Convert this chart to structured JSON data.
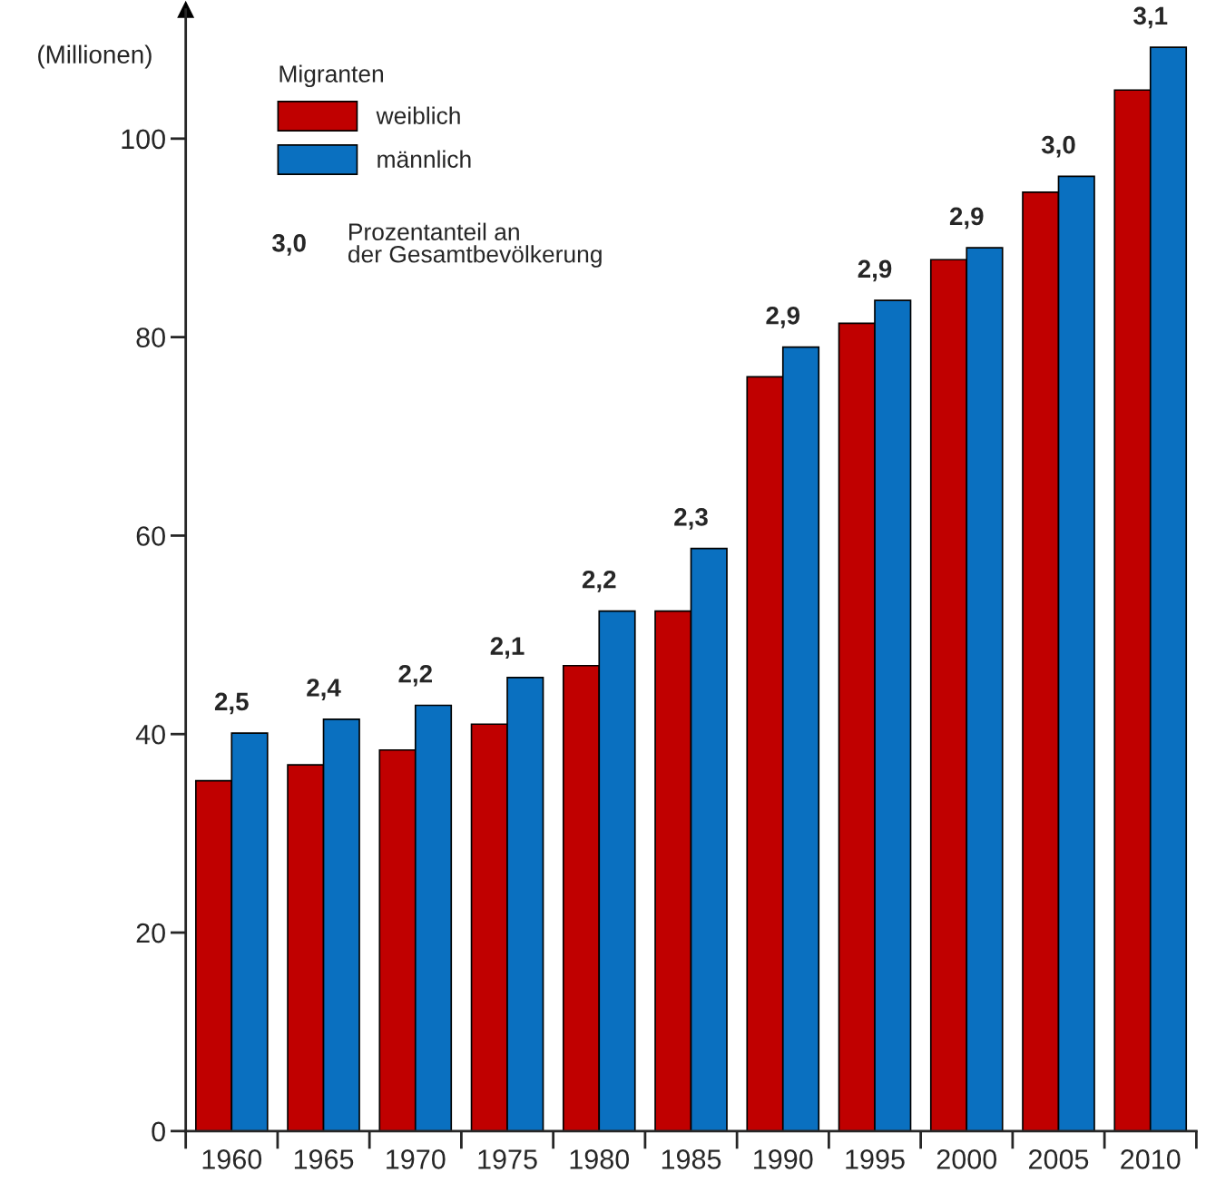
{
  "chart_data": {
    "type": "bar",
    "ylabel": "(Millionen)",
    "legend_title": "Migranten",
    "categories": [
      "1960",
      "1965",
      "1970",
      "1975",
      "1980",
      "1985",
      "1990",
      "1995",
      "2000",
      "2005",
      "2010"
    ],
    "series": [
      {
        "name": "weiblich",
        "color": "#c00000",
        "values": [
          35.3,
          36.9,
          38.4,
          41.0,
          46.9,
          52.4,
          76.0,
          81.4,
          87.8,
          94.6,
          104.9
        ]
      },
      {
        "name": "männlich",
        "color": "#0a70c0",
        "values": [
          40.1,
          41.5,
          42.9,
          45.7,
          52.4,
          58.7,
          79.0,
          83.7,
          89.0,
          96.2,
          109.2
        ]
      }
    ],
    "ylim": [
      0,
      113
    ],
    "yticks": [
      0,
      20,
      40,
      60,
      80,
      100
    ],
    "grid": false,
    "legend": "top left",
    "annotations": [
      {
        "text": "2,5",
        "x": "1960",
        "y": 40.1
      },
      {
        "text": "2,4",
        "x": "1965",
        "y": 41.5
      },
      {
        "text": "2,2",
        "x": "1970",
        "y": 42.9
      },
      {
        "text": "2,1",
        "x": "1975",
        "y": 45.7
      },
      {
        "text": "2,2",
        "x": "1980",
        "y": 52.4
      },
      {
        "text": "2,3",
        "x": "1985",
        "y": 58.7
      },
      {
        "text": "2,9",
        "x": "1990",
        "y": 79.0
      },
      {
        "text": "2,9",
        "x": "1995",
        "y": 83.7
      },
      {
        "text": "2,9",
        "x": "2000",
        "y": 89.0
      },
      {
        "text": "3,0",
        "x": "2005",
        "y": 96.2
      },
      {
        "text": "3,1",
        "x": "2010",
        "y": 109.2
      },
      "3,0",
      "Prozentanteil an\nder Gesamtbevölkerung"
    ]
  }
}
